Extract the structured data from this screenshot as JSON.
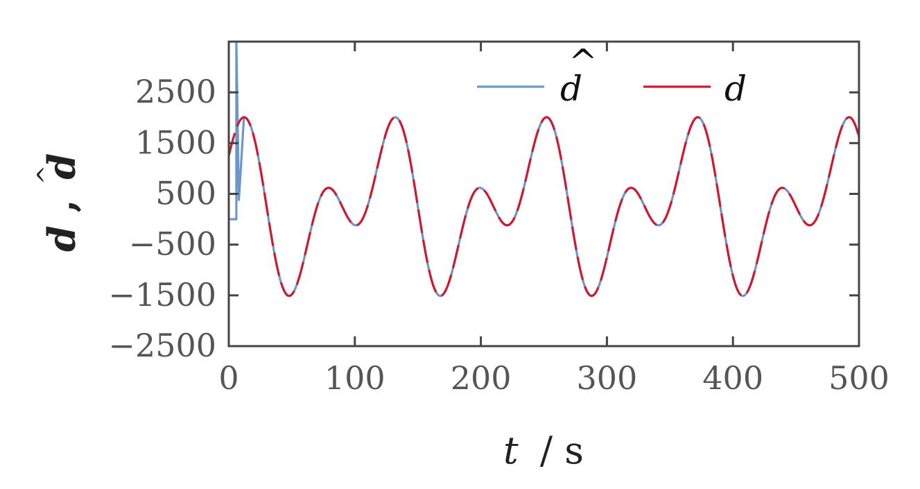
{
  "chart_data": {
    "type": "line",
    "xlabel": {
      "var": "t",
      "unit": "/ s"
    },
    "ylabel": {
      "var1": "d",
      "sep": ",",
      "var2": "d",
      "hat": "^"
    },
    "xlim": [
      0,
      500
    ],
    "ylim": [
      -2500,
      3500
    ],
    "xticks": [
      0,
      100,
      200,
      300,
      400,
      500
    ],
    "xtick_labels": [
      "0",
      "100",
      "200",
      "300",
      "400",
      "500"
    ],
    "yticks": [
      -2500,
      -1500,
      -500,
      500,
      1500,
      2500
    ],
    "ytick_labels": [
      "−2500",
      "−1500",
      "−500",
      "500",
      "1500",
      "2500"
    ],
    "grid": false,
    "legend_position": "top-right",
    "series": [
      {
        "name": "d̂",
        "legend_label": "d",
        "legend_hat": "^",
        "color": "#6c96cc",
        "style": "solid"
      },
      {
        "name": "d",
        "legend_label": "d",
        "color": "#d0182e",
        "style": "dashed"
      }
    ],
    "signal": {
      "components": [
        {
          "amplitude": 1000,
          "period": 120,
          "phase_deg": 90
        },
        {
          "amplitude": 1000,
          "period": 60,
          "phase_deg": 0
        }
      ],
      "offset": 250,
      "t_step": 0.5
    },
    "estimate_startup": {
      "initial_value": 0,
      "jump_t": 6,
      "peak_value": 3500,
      "settle_t": 8,
      "settle_value": 380
    }
  }
}
